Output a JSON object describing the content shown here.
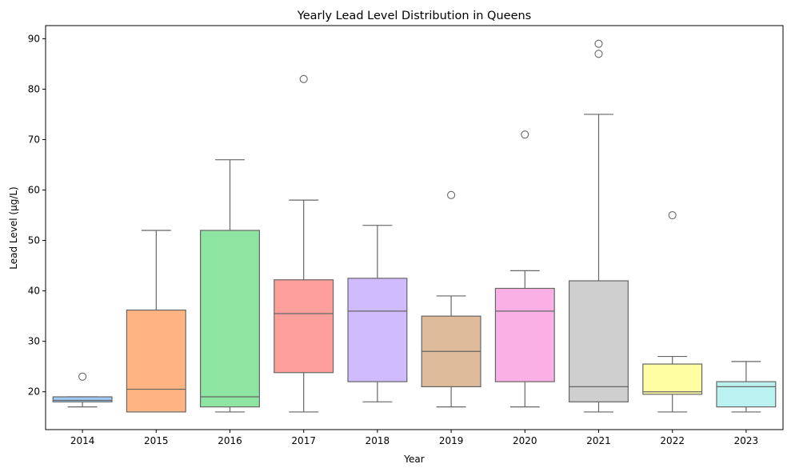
{
  "chart_data": {
    "type": "box",
    "title": "Yearly Lead Level Distribution in Queens",
    "xlabel": "Year",
    "ylabel": "Lead Level (µg/L)",
    "categories": [
      "2014",
      "2015",
      "2016",
      "2017",
      "2018",
      "2019",
      "2020",
      "2021",
      "2022",
      "2023"
    ],
    "yticks": [
      20,
      30,
      40,
      50,
      60,
      70,
      80,
      90
    ],
    "ylim": [
      12.5,
      92.6
    ],
    "grid": false,
    "boxes": [
      {
        "category": "2014",
        "whisker_low": 17,
        "q1": 18,
        "median": 18.3,
        "q3": 19,
        "whisker_high": 19,
        "outliers": [
          23
        ],
        "color": "#a1c9f4"
      },
      {
        "category": "2015",
        "whisker_low": 16,
        "q1": 16,
        "median": 20.5,
        "q3": 36.2,
        "whisker_high": 52,
        "outliers": [],
        "color": "#ffb482"
      },
      {
        "category": "2016",
        "whisker_low": 16,
        "q1": 17,
        "median": 19,
        "q3": 52,
        "whisker_high": 66,
        "outliers": [],
        "color": "#8de5a1"
      },
      {
        "category": "2017",
        "whisker_low": 16,
        "q1": 23.8,
        "median": 35.5,
        "q3": 42.2,
        "whisker_high": 58,
        "outliers": [
          82
        ],
        "color": "#ff9f9b"
      },
      {
        "category": "2018",
        "whisker_low": 18,
        "q1": 22,
        "median": 36,
        "q3": 42.5,
        "whisker_high": 53,
        "outliers": [],
        "color": "#d0bbff"
      },
      {
        "category": "2019",
        "whisker_low": 17,
        "q1": 21,
        "median": 28,
        "q3": 35,
        "whisker_high": 39,
        "outliers": [
          59
        ],
        "color": "#debb9b"
      },
      {
        "category": "2020",
        "whisker_low": 17,
        "q1": 22,
        "median": 36,
        "q3": 40.5,
        "whisker_high": 44,
        "outliers": [
          71
        ],
        "color": "#fab0e4"
      },
      {
        "category": "2021",
        "whisker_low": 16,
        "q1": 18,
        "median": 21,
        "q3": 42,
        "whisker_high": 75,
        "outliers": [
          87,
          89
        ],
        "color": "#cfcfcf"
      },
      {
        "category": "2022",
        "whisker_low": 16,
        "q1": 19.5,
        "median": 20,
        "q3": 25.5,
        "whisker_high": 27,
        "outliers": [
          55
        ],
        "color": "#fffea3"
      },
      {
        "category": "2023",
        "whisker_low": 16,
        "q1": 17,
        "median": 21,
        "q3": 22,
        "whisker_high": 26,
        "outliers": [],
        "color": "#b9f2f0"
      }
    ],
    "line_color": "#666666"
  }
}
